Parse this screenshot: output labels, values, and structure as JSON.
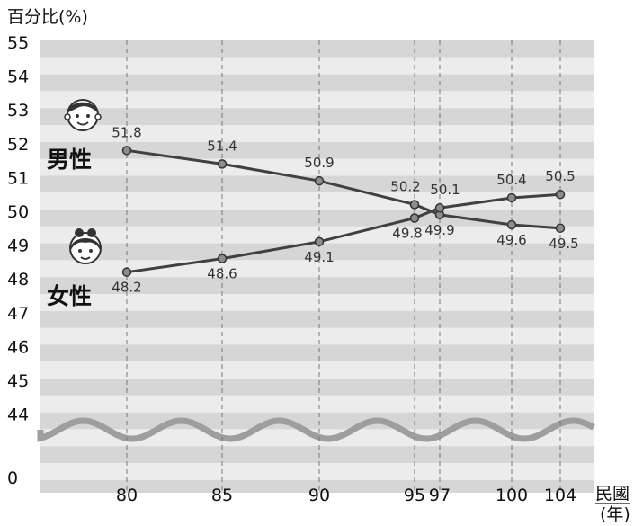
{
  "chart_data": {
    "type": "line",
    "ylabel": "百分比(%)",
    "xlabel_top": "民國",
    "xlabel_bottom": "(年)",
    "x": [
      80,
      85,
      90,
      95,
      97,
      100,
      104
    ],
    "x_tick_labels": [
      "80",
      "85",
      "90",
      "95",
      "97",
      "100",
      "104"
    ],
    "y_ticks": [
      55,
      54,
      53,
      52,
      51,
      50,
      49,
      48,
      47,
      46,
      45,
      44,
      0
    ],
    "y_axis_break": "between 44 and 0",
    "ylim": [
      44,
      55
    ],
    "grid": "horizontal bands + dashed vertical lines",
    "series": [
      {
        "name": "男性",
        "icon": "boy-face-icon",
        "values": [
          51.8,
          51.4,
          50.9,
          50.2,
          49.9,
          49.6,
          49.5
        ],
        "labels": [
          "51.8",
          "51.4",
          "50.9",
          "50.2",
          "49.9",
          "49.6",
          "49.5"
        ]
      },
      {
        "name": "女性",
        "icon": "girl-face-icon",
        "values": [
          48.2,
          48.6,
          49.1,
          49.8,
          50.1,
          50.4,
          50.5
        ],
        "labels": [
          "48.2",
          "48.6",
          "49.1",
          "49.8",
          "50.1",
          "50.4",
          "50.5"
        ]
      }
    ],
    "colors": {
      "line": "#404040",
      "marker": "#8c8c8c",
      "band_dark": "#d6d6d6",
      "band_light": "#ececec",
      "wave": "#9e9e9e"
    }
  }
}
